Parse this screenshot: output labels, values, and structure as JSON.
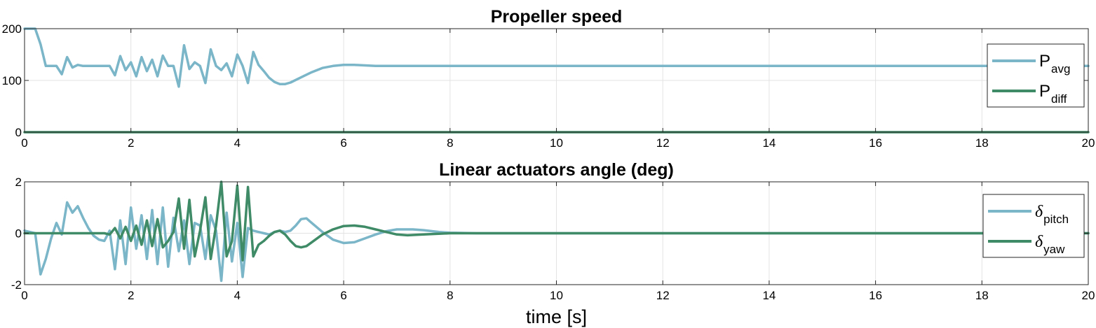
{
  "chart_data": [
    {
      "type": "line",
      "title": "Propeller speed",
      "xlabel": "",
      "ylabel": "",
      "xlim": [
        0,
        20
      ],
      "ylim": [
        0,
        200
      ],
      "xticks": [
        0,
        2,
        4,
        6,
        8,
        10,
        12,
        14,
        16,
        18,
        20
      ],
      "yticks": [
        0,
        100,
        200
      ],
      "grid": true,
      "legend_position": "right",
      "series": [
        {
          "name": "P",
          "name_subscript": "avg",
          "color": "#7ab5c8",
          "x": [
            0,
            0.2,
            0.3,
            0.4,
            0.5,
            0.6,
            0.7,
            0.8,
            0.9,
            1.0,
            1.1,
            1.2,
            1.4,
            1.6,
            1.7,
            1.8,
            1.9,
            2.0,
            2.1,
            2.2,
            2.3,
            2.4,
            2.5,
            2.6,
            2.7,
            2.8,
            2.9,
            3.0,
            3.1,
            3.2,
            3.3,
            3.4,
            3.5,
            3.6,
            3.7,
            3.8,
            3.9,
            4.0,
            4.1,
            4.2,
            4.3,
            4.4,
            4.5,
            4.6,
            4.7,
            4.8,
            4.9,
            5.0,
            5.2,
            5.4,
            5.6,
            5.8,
            6.0,
            6.2,
            6.4,
            6.6,
            7.0,
            7.5,
            8,
            10,
            12,
            14,
            16,
            18,
            20
          ],
          "y": [
            200,
            200,
            170,
            128,
            128,
            128,
            112,
            145,
            125,
            130,
            128,
            128,
            128,
            128,
            110,
            147,
            120,
            135,
            108,
            145,
            118,
            140,
            108,
            148,
            128,
            128,
            88,
            168,
            122,
            135,
            128,
            95,
            160,
            128,
            120,
            133,
            108,
            150,
            128,
            95,
            155,
            130,
            118,
            105,
            97,
            93,
            93,
            96,
            106,
            116,
            124,
            128,
            130,
            130,
            129,
            128,
            128,
            128,
            128,
            128,
            128,
            128,
            128,
            128,
            128
          ]
        },
        {
          "name": "P",
          "name_subscript": "diff",
          "color": "#3f8a67",
          "x": [
            0,
            20
          ],
          "y": [
            0,
            0
          ]
        }
      ]
    },
    {
      "type": "line",
      "title": "Linear actuators angle (deg)",
      "xlabel": "time [s]",
      "ylabel": "",
      "xlim": [
        0,
        20
      ],
      "ylim": [
        -2,
        2
      ],
      "xticks": [
        0,
        2,
        4,
        6,
        8,
        10,
        12,
        14,
        16,
        18,
        20
      ],
      "yticks": [
        -2,
        0,
        2
      ],
      "grid": true,
      "legend_position": "right",
      "series": [
        {
          "name": "δ",
          "name_subscript": "pitch",
          "color": "#7ab5c8",
          "x": [
            0,
            0.1,
            0.2,
            0.3,
            0.4,
            0.5,
            0.6,
            0.7,
            0.8,
            0.9,
            1.0,
            1.1,
            1.2,
            1.3,
            1.4,
            1.5,
            1.6,
            1.7,
            1.8,
            1.9,
            2.0,
            2.1,
            2.2,
            2.3,
            2.4,
            2.5,
            2.6,
            2.7,
            2.8,
            2.9,
            3.0,
            3.1,
            3.2,
            3.3,
            3.4,
            3.5,
            3.6,
            3.7,
            3.8,
            3.9,
            4.0,
            4.1,
            4.2,
            4.3,
            4.4,
            4.5,
            4.6,
            4.7,
            4.8,
            4.9,
            5.0,
            5.1,
            5.2,
            5.3,
            5.4,
            5.6,
            5.8,
            6.0,
            6.2,
            6.4,
            6.6,
            6.8,
            7.0,
            7.3,
            7.5,
            7.8,
            8.0,
            8.5,
            9,
            10,
            12,
            14,
            16,
            18,
            20
          ],
          "y": [
            0.1,
            0.05,
            0,
            -1.6,
            -1.0,
            -0.2,
            0.4,
            -0.05,
            1.2,
            0.8,
            1.05,
            0.6,
            0.2,
            -0.1,
            -0.25,
            -0.3,
            0.1,
            -1.4,
            0.5,
            -1.2,
            1.0,
            -0.6,
            0.7,
            -1.0,
            0.9,
            -1.2,
            1.0,
            -1.3,
            0.6,
            -0.7,
            0.5,
            -1.2,
            0.4,
            0.3,
            -1.0,
            0.7,
            0.1,
            -1.85,
            0.8,
            -1.1,
            0.4,
            -1.7,
            0.2,
            0.1,
            0.05,
            0.0,
            -0.05,
            0.05,
            0.1,
            0.05,
            0.1,
            0.3,
            0.55,
            0.58,
            0.4,
            0.05,
            -0.25,
            -0.38,
            -0.35,
            -0.2,
            -0.05,
            0.08,
            0.15,
            0.15,
            0.12,
            0.05,
            0.02,
            0,
            0,
            0,
            0,
            0,
            0,
            0,
            0
          ]
        },
        {
          "name": "δ",
          "name_subscript": "yaw",
          "color": "#3f8a67",
          "x": [
            0,
            1.5,
            1.6,
            1.7,
            1.8,
            1.9,
            2.0,
            2.1,
            2.2,
            2.3,
            2.4,
            2.5,
            2.6,
            2.7,
            2.8,
            2.9,
            3.0,
            3.1,
            3.2,
            3.3,
            3.4,
            3.5,
            3.6,
            3.7,
            3.8,
            3.9,
            4.0,
            4.1,
            4.2,
            4.3,
            4.4,
            4.5,
            4.6,
            4.7,
            4.8,
            4.9,
            5.0,
            5.1,
            5.2,
            5.3,
            5.4,
            5.6,
            5.8,
            6.0,
            6.2,
            6.4,
            6.6,
            6.8,
            7.0,
            7.2,
            7.5,
            8.0,
            9,
            10,
            12,
            14,
            16,
            18,
            20
          ],
          "y": [
            0,
            0,
            -0.05,
            0.2,
            -0.2,
            0.25,
            -0.3,
            0.3,
            -0.45,
            0.5,
            -0.5,
            0.55,
            -0.55,
            -0.3,
            0.05,
            1.35,
            -0.6,
            1.3,
            -0.9,
            0.1,
            1.4,
            -1.0,
            0.3,
            2.0,
            -0.9,
            -0.3,
            1.85,
            -1.05,
            1.8,
            -0.9,
            -0.45,
            -0.3,
            -0.1,
            0.05,
            0.1,
            -0.05,
            -0.3,
            -0.5,
            -0.55,
            -0.5,
            -0.35,
            -0.05,
            0.15,
            0.28,
            0.3,
            0.25,
            0.15,
            0.05,
            -0.05,
            -0.08,
            -0.05,
            0,
            0,
            0,
            0,
            0,
            0,
            0,
            0
          ]
        }
      ]
    }
  ]
}
